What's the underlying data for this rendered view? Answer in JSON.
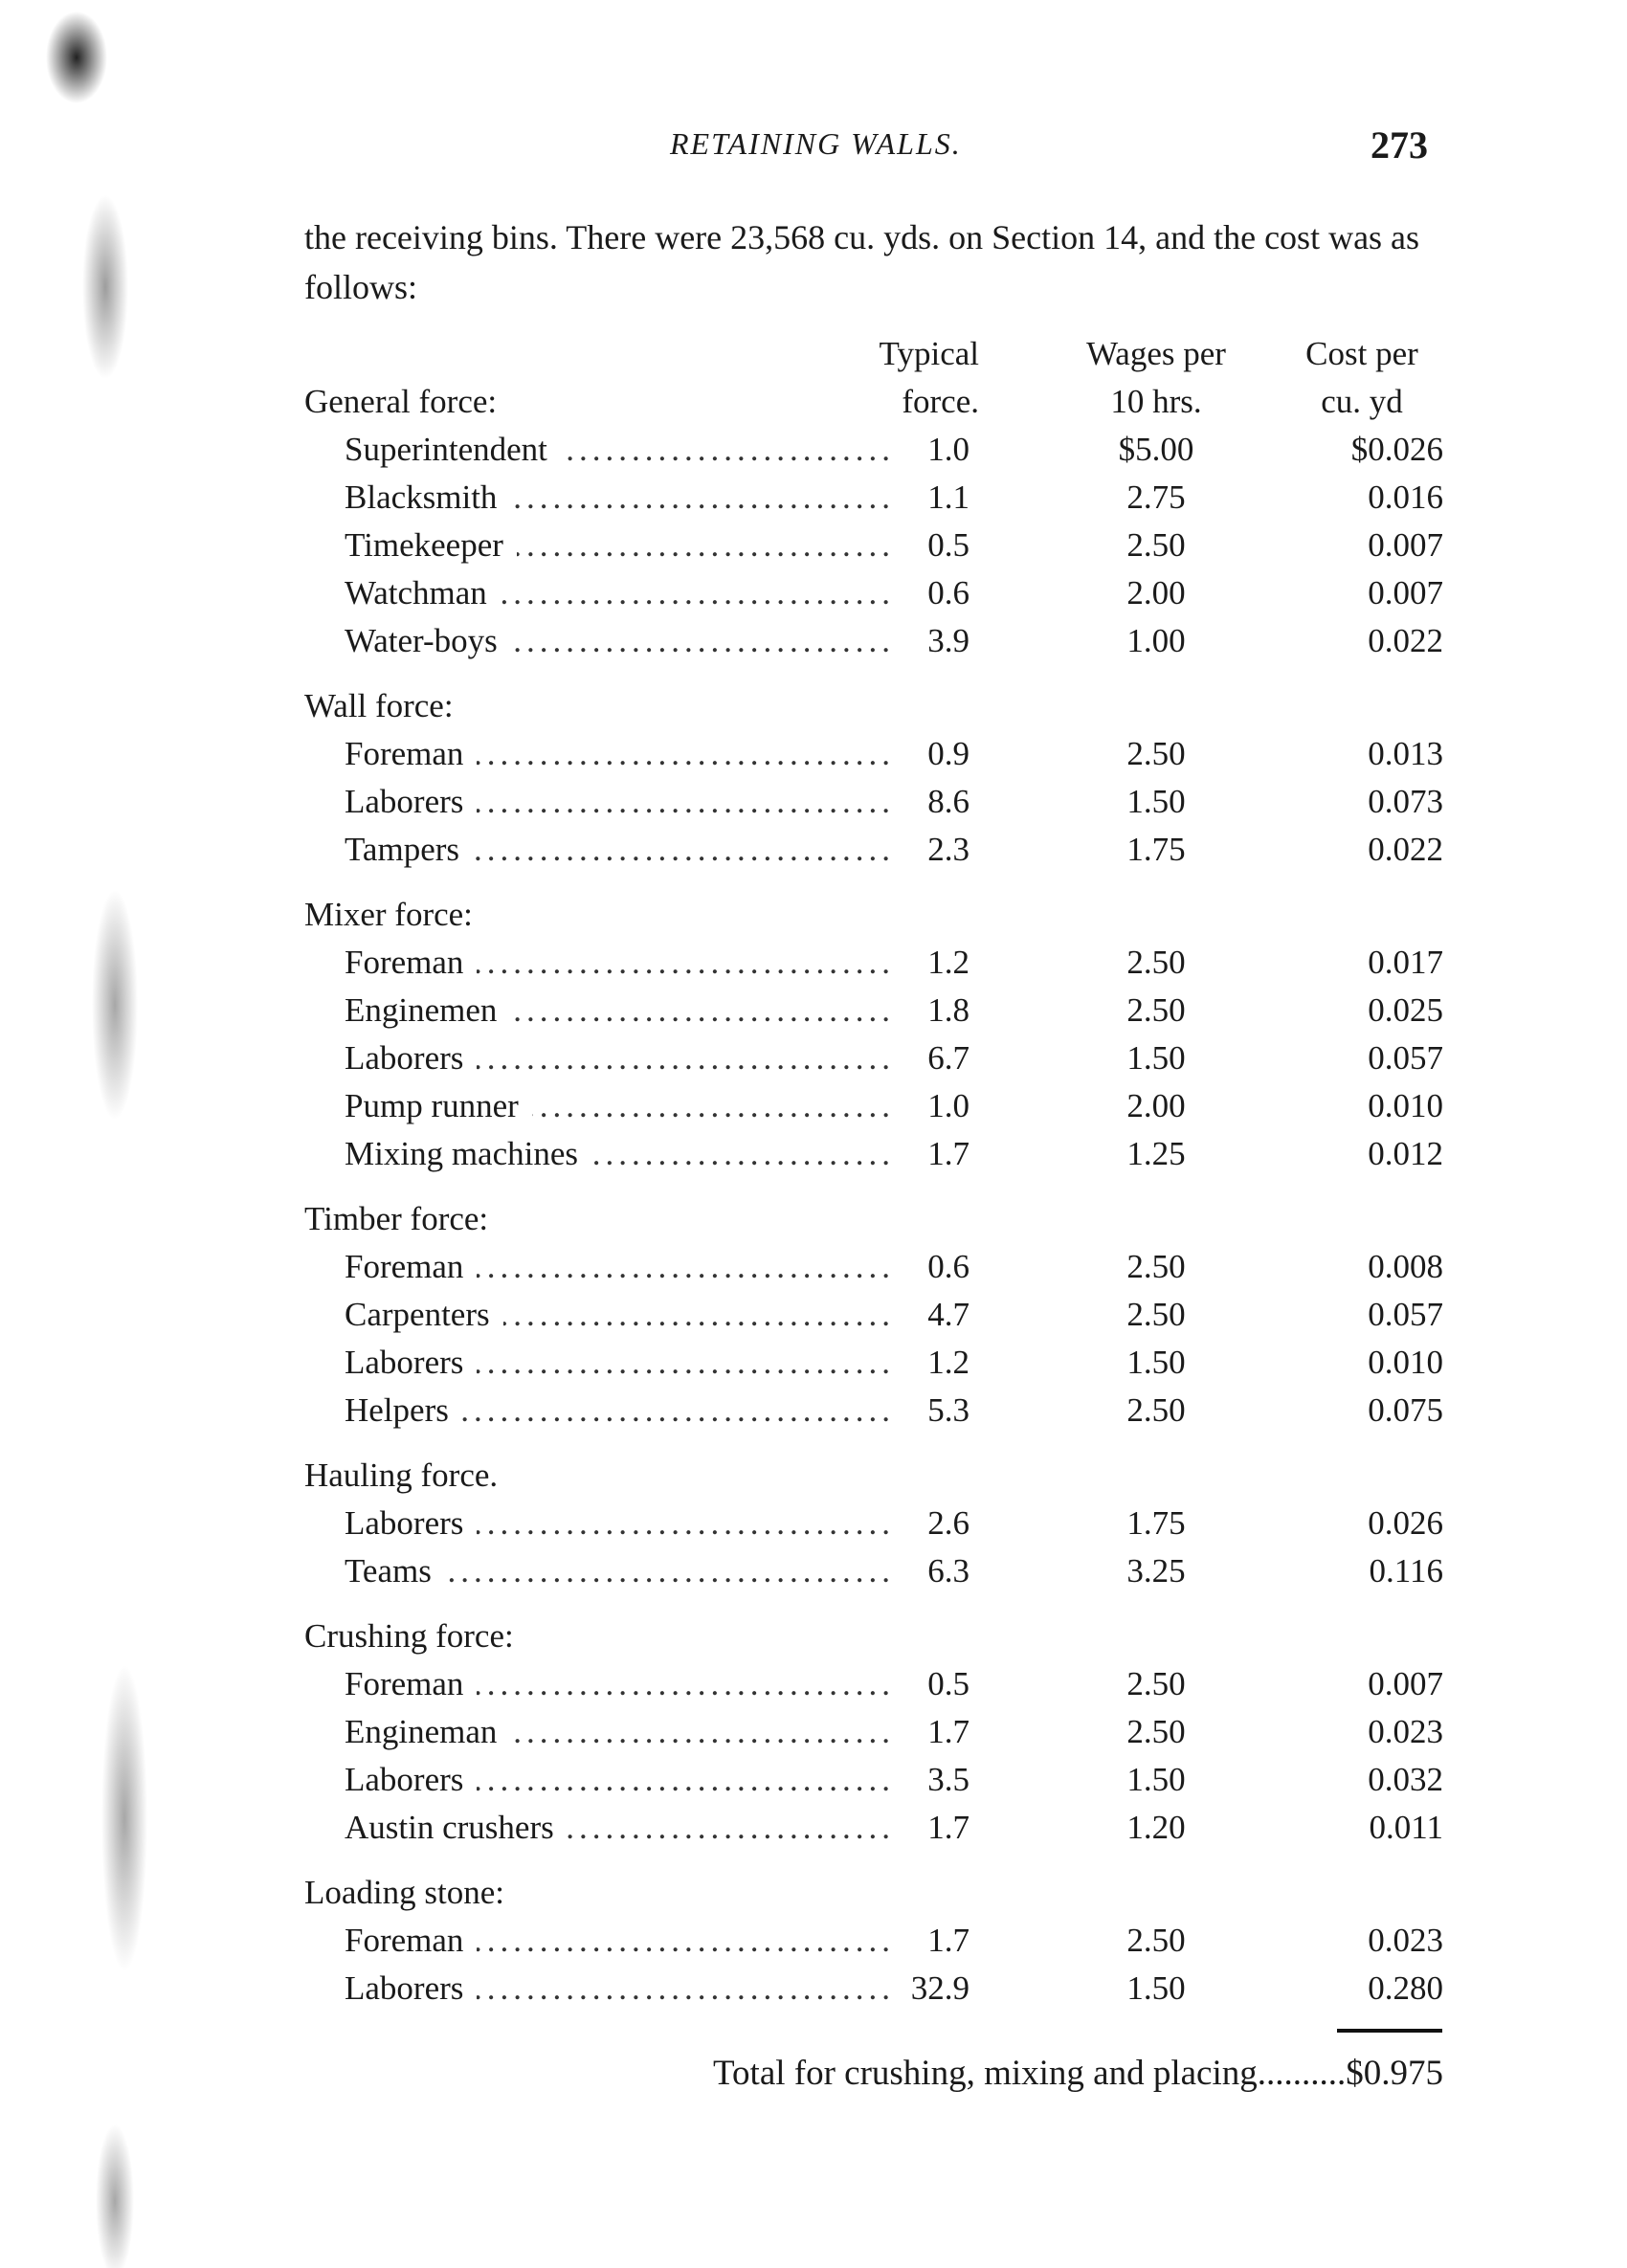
{
  "running_head": "RETAINING WALLS.",
  "page_number": "273",
  "intro": "the receiving bins. There were 23,568 cu. yds. on Section 14, and the cost was as follows:",
  "columns": {
    "force": [
      "Typical",
      "force."
    ],
    "wages": [
      "Wages per",
      "10 hrs."
    ],
    "cost": [
      "Cost per",
      "cu. yd"
    ]
  },
  "groups": [
    {
      "label": "General force:",
      "rows": [
        {
          "item": "Superintendent",
          "force": "1.0",
          "wages": "$5.00",
          "cost": "$0.026"
        },
        {
          "item": "Blacksmith",
          "force": "1.1",
          "wages": "2.75",
          "cost": "0.016"
        },
        {
          "item": "Timekeeper",
          "force": "0.5",
          "wages": "2.50",
          "cost": "0.007"
        },
        {
          "item": "Watchman",
          "force": "0.6",
          "wages": "2.00",
          "cost": "0.007"
        },
        {
          "item": "Water-boys",
          "force": "3.9",
          "wages": "1.00",
          "cost": "0.022"
        }
      ]
    },
    {
      "label": "Wall force:",
      "rows": [
        {
          "item": "Foreman",
          "force": "0.9",
          "wages": "2.50",
          "cost": "0.013"
        },
        {
          "item": "Laborers",
          "force": "8.6",
          "wages": "1.50",
          "cost": "0.073"
        },
        {
          "item": "Tampers",
          "force": "2.3",
          "wages": "1.75",
          "cost": "0.022"
        }
      ]
    },
    {
      "label": "Mixer force:",
      "rows": [
        {
          "item": "Foreman",
          "force": "1.2",
          "wages": "2.50",
          "cost": "0.017"
        },
        {
          "item": "Enginemen",
          "force": "1.8",
          "wages": "2.50",
          "cost": "0.025"
        },
        {
          "item": "Laborers",
          "force": "6.7",
          "wages": "1.50",
          "cost": "0.057"
        },
        {
          "item": "Pump runner",
          "force": "1.0",
          "wages": "2.00",
          "cost": "0.010"
        },
        {
          "item": "Mixing machines",
          "force": "1.7",
          "wages": "1.25",
          "cost": "0.012"
        }
      ]
    },
    {
      "label": "Timber force:",
      "rows": [
        {
          "item": "Foreman",
          "force": "0.6",
          "wages": "2.50",
          "cost": "0.008"
        },
        {
          "item": "Carpenters",
          "force": "4.7",
          "wages": "2.50",
          "cost": "0.057"
        },
        {
          "item": "Laborers",
          "force": "1.2",
          "wages": "1.50",
          "cost": "0.010"
        },
        {
          "item": "Helpers",
          "force": "5.3",
          "wages": "2.50",
          "cost": "0.075"
        }
      ]
    },
    {
      "label": "Hauling force.",
      "rows": [
        {
          "item": "Laborers",
          "force": "2.6",
          "wages": "1.75",
          "cost": "0.026"
        },
        {
          "item": "Teams",
          "force": "6.3",
          "wages": "3.25",
          "cost": "0.116"
        }
      ]
    },
    {
      "label": "Crushing force:",
      "rows": [
        {
          "item": "Foreman",
          "force": "0.5",
          "wages": "2.50",
          "cost": "0.007"
        },
        {
          "item": "Engineman",
          "force": "1.7",
          "wages": "2.50",
          "cost": "0.023"
        },
        {
          "item": "Laborers",
          "force": "3.5",
          "wages": "1.50",
          "cost": "0.032"
        },
        {
          "item": "Austin crushers",
          "force": "1.7",
          "wages": "1.20",
          "cost": "0.011"
        }
      ]
    },
    {
      "label": "Loading stone:",
      "rows": [
        {
          "item": "Foreman",
          "force": "1.7",
          "wages": "2.50",
          "cost": "0.023"
        },
        {
          "item": "Laborers",
          "force": "32.9",
          "wages": "1.50",
          "cost": "0.280"
        }
      ]
    }
  ],
  "total": {
    "label": "Total for crushing, mixing and placing",
    "leader": "..........",
    "value": "$0.975"
  }
}
